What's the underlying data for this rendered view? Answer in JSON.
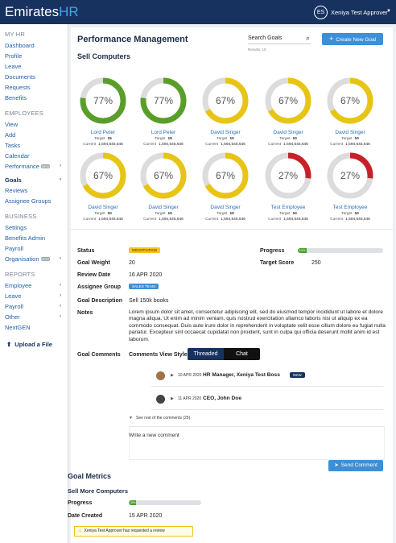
{
  "header": {
    "logo_main": "Emirates",
    "logo_accent": "HR",
    "user_initials": "ES",
    "user_name": "Xeniya Test Approver"
  },
  "sidebar": {
    "sections": [
      {
        "title": "MY HR",
        "items": [
          {
            "label": "Dashboard"
          },
          {
            "label": "Profile"
          },
          {
            "label": "Leave"
          },
          {
            "label": "Documents"
          },
          {
            "label": "Requests"
          },
          {
            "label": "Benefits"
          }
        ]
      },
      {
        "title": "EMPLOYEES",
        "items": [
          {
            "label": "View"
          },
          {
            "label": "Add"
          },
          {
            "label": "Tasks"
          },
          {
            "label": "Calendar"
          },
          {
            "label": "Performance",
            "badge": "NEW"
          },
          {
            "label": "Goals",
            "active": true
          },
          {
            "label": "Reviews"
          },
          {
            "label": "Assignee Groups"
          }
        ]
      },
      {
        "title": "BUSINESS",
        "items": [
          {
            "label": "Settings"
          },
          {
            "label": "Benefits Admin"
          },
          {
            "label": "Payroll"
          },
          {
            "label": "Organisation",
            "badge": "NEW"
          }
        ]
      },
      {
        "title": "REPORTS",
        "items": [
          {
            "label": "Employee",
            "submenu": true
          },
          {
            "label": "Leave",
            "submenu": true
          },
          {
            "label": "Payroll",
            "submenu": true
          },
          {
            "label": "Other",
            "submenu": true
          },
          {
            "label": "NextGEN"
          }
        ]
      }
    ],
    "upload_button": "Upload a File"
  },
  "page": {
    "title": "Performance Management",
    "search_placeholder": "Search Goals",
    "results": "Results: 10",
    "create_button": "Create New Goal",
    "goal_title": "Sell Computers"
  },
  "gauges": [
    {
      "value": 77,
      "value_label": "77%",
      "color": "#5a9e2a",
      "name": "Lord Peter",
      "target_label": "Target",
      "target": 15,
      "current_label": "Current",
      "current": "1,594,545,646"
    },
    {
      "value": 77,
      "value_label": "77%",
      "color": "#5a9e2a",
      "name": "Lord Peter",
      "target_label": "Target",
      "target": 15,
      "current_label": "Current",
      "current": "1,594,545,646"
    },
    {
      "value": 67,
      "value_label": "67%",
      "color": "#e8c414",
      "name": "David Singer",
      "target_label": "Target",
      "target": 10,
      "current_label": "Current",
      "current": "1,594,545,646"
    },
    {
      "value": 67,
      "value_label": "67%",
      "color": "#e8c414",
      "name": "David Singer",
      "target_label": "Target",
      "target": 10,
      "current_label": "Current",
      "current": "1,594,545,646"
    },
    {
      "value": 67,
      "value_label": "67%",
      "color": "#e8c414",
      "name": "David Singer",
      "target_label": "Target",
      "target": 10,
      "current_label": "Current",
      "current": "1,594,545,646"
    },
    {
      "value": 67,
      "value_label": "67%",
      "color": "#e8c414",
      "name": "David Singer",
      "target_label": "Target",
      "target": 10,
      "current_label": "Current",
      "current": "1,594,545,646"
    },
    {
      "value": 67,
      "value_label": "67%",
      "color": "#e8c414",
      "name": "David Singer",
      "target_label": "Target",
      "target": 10,
      "current_label": "Current",
      "current": "1,594,545,646"
    },
    {
      "value": 67,
      "value_label": "67%",
      "color": "#e8c414",
      "name": "David Singer",
      "target_label": "Target",
      "target": 10,
      "current_label": "Current",
      "current": "1,594,545,646"
    },
    {
      "value": 27,
      "value_label": "27%",
      "color": "#c8202a",
      "name": "Test Employee",
      "target_label": "Target",
      "target": 10,
      "current_label": "Current",
      "current": "1,594,545,646"
    },
    {
      "value": 27,
      "value_label": "27%",
      "color": "#c8202a",
      "name": "Test Employee",
      "target_label": "Target",
      "target": 10,
      "current_label": "Current",
      "current": "1,594,545,646"
    }
  ],
  "details": {
    "status_label": "Status",
    "status": "NEGOTIATING",
    "progress_label": "Progress",
    "progress": 10,
    "progress_text": "10%",
    "goal_weight_label": "Goal Weight",
    "goal_weight": 20,
    "target_score_label": "Target Score",
    "target_score": 250,
    "review_date_label": "Review Date",
    "review_date": "16 APR 2020",
    "assignee_group_label": "Assignee Group",
    "assignee_group": "SALES TEAM",
    "goal_description_label": "Goal Description",
    "goal_description": "Sell 150k books",
    "notes_label": "Notes",
    "notes": "Lorem ipsum dolor sit amet, consectetur adipiscing elit, sed do eiusmod tempor incididunt ut labore et dolore magna aliqua. Ut enim ad minim veniam, quis nostrud exercitation ullamco laboris nisi ut aliquip ex ea commodo consequat. Duis aute irure dolor in reprehenderit in voluptate velit esse cillum dolore eu fugiat nulla pariatur. Excepteur sint occaecat cupidatat non proident, sunt in culpa qui officia deserunt mollit anim id est laborum."
  },
  "comments": {
    "label": "Goal Comments",
    "view_style_label": "Comments View Style",
    "view_options": [
      "Threaded",
      "Chat"
    ],
    "threads": [
      {
        "date": "10 APR 2020",
        "author": "HR Manager, Xeniya Test Boss",
        "badge": "NEW"
      },
      {
        "date": "11 APR 2020",
        "author": "CEO, John Doe"
      }
    ],
    "see_more": "See rest of the comments (25)",
    "input_placeholder": "Write a new comment",
    "send_button": "Send Comment"
  },
  "metrics": {
    "title": "Goal Metrics",
    "goal": "Sell More Computers",
    "progress_label": "Progress",
    "progress": 10,
    "progress_text": "10%",
    "date_created_label": "Date Created",
    "date_created": "15 APR 2020",
    "alert": "Xeniya Test Approver has requested a review"
  }
}
